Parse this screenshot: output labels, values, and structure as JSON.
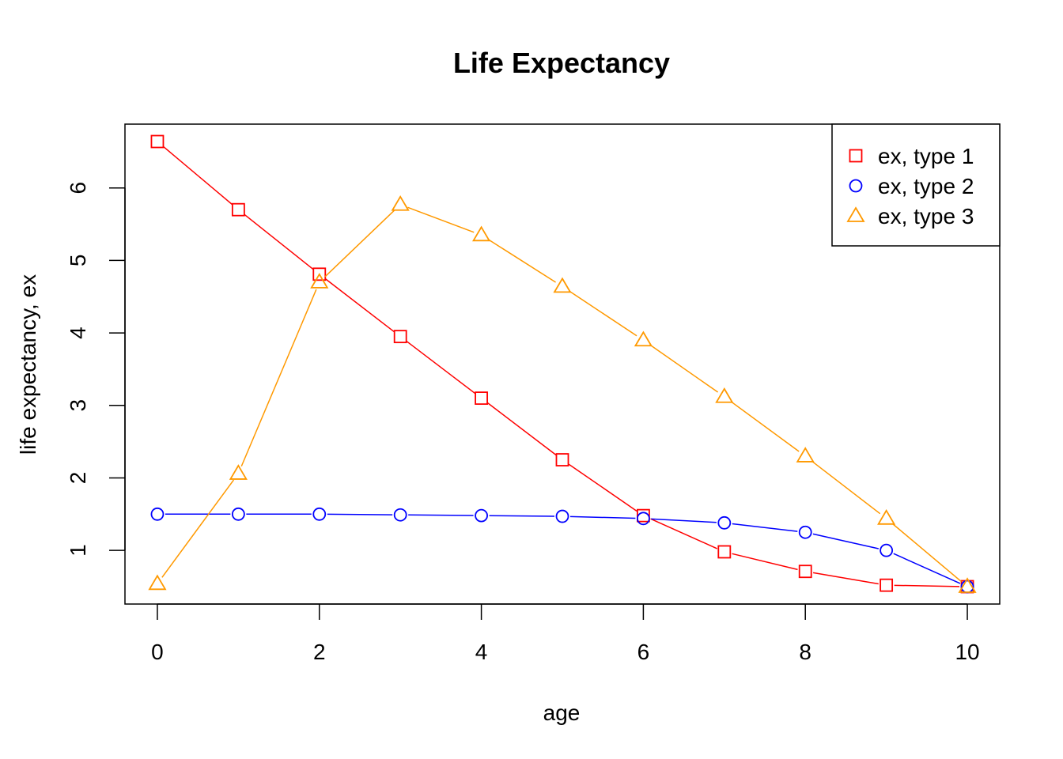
{
  "chart_data": {
    "type": "line",
    "title": "Life Expectancy",
    "xlabel": "age",
    "ylabel": "life expectancy, ex",
    "x": [
      0,
      1,
      2,
      3,
      4,
      5,
      6,
      7,
      8,
      9,
      10
    ],
    "x_ticks": [
      "0",
      "2",
      "4",
      "6",
      "8",
      "10"
    ],
    "y_ticks": [
      "1",
      "2",
      "3",
      "4",
      "5",
      "6"
    ],
    "xlim": [
      -0.4,
      10.4
    ],
    "ylim": [
      0.26,
      6.88
    ],
    "legend_position": "top-right",
    "series": [
      {
        "name": "ex, type 1",
        "color": "#ff0000",
        "marker": "square",
        "values": [
          6.64,
          5.7,
          4.81,
          3.95,
          3.1,
          2.25,
          1.48,
          0.98,
          0.71,
          0.52,
          0.5
        ]
      },
      {
        "name": "ex, type 2",
        "color": "#0000ff",
        "marker": "circle",
        "values": [
          1.5,
          1.5,
          1.5,
          1.49,
          1.48,
          1.47,
          1.44,
          1.38,
          1.25,
          1.0,
          0.5
        ]
      },
      {
        "name": "ex, type 3",
        "color": "#ff9900",
        "marker": "triangle",
        "values": [
          0.54,
          2.06,
          4.7,
          5.77,
          5.35,
          4.64,
          3.9,
          3.12,
          2.3,
          1.44,
          0.5
        ]
      }
    ]
  }
}
